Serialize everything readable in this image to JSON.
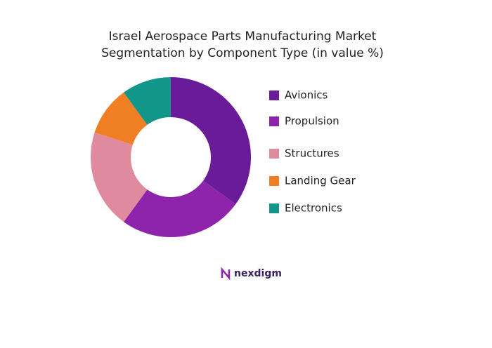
{
  "chart_data": {
    "type": "donut",
    "title": "Israel Aerospace Parts Manufacturing Market",
    "subtitle": "Segmentation by Component Type (in value %)",
    "categories": [
      "Avionics",
      "Propulsion",
      "Structures",
      "Landing Gear",
      "Electronics"
    ],
    "values": [
      35,
      25,
      20,
      10,
      10
    ],
    "colors": [
      "#6a1b9a",
      "#8e24aa",
      "#e08a9e",
      "#f07f23",
      "#12968a"
    ],
    "logo": "nexdigm"
  }
}
